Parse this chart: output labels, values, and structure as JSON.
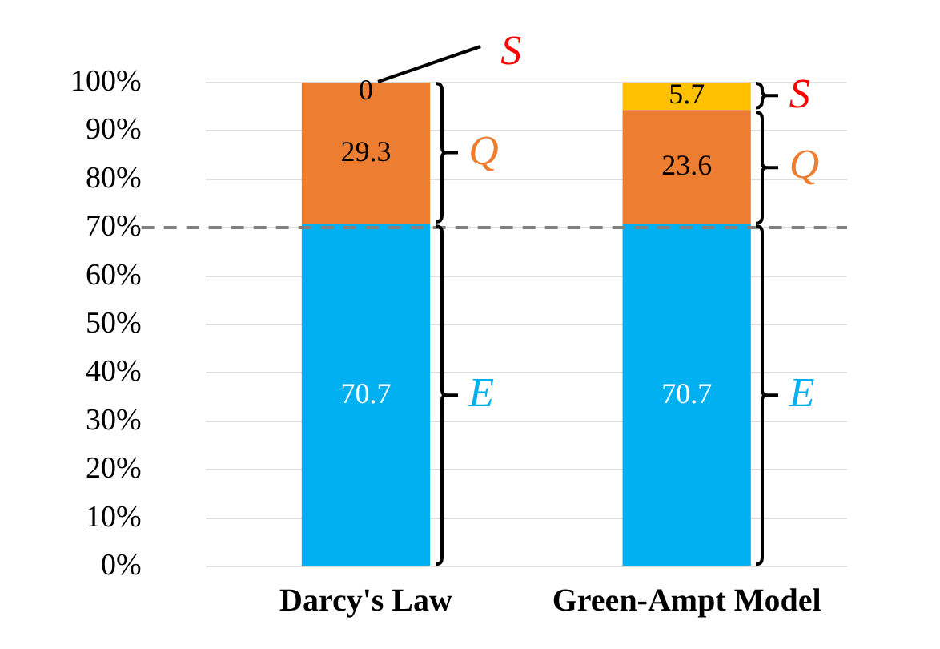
{
  "chart_data": {
    "type": "bar",
    "stacked": true,
    "categories": [
      "Darcy's Law",
      "Green-Ampt Model"
    ],
    "series": [
      {
        "name": "E",
        "color": "#00b0f0",
        "values": [
          70.7,
          70.7
        ]
      },
      {
        "name": "Q",
        "color": "#ed7d31",
        "values": [
          29.3,
          23.6
        ]
      },
      {
        "name": "S",
        "color": "#ffc000",
        "values": [
          0,
          5.7
        ]
      }
    ],
    "ylim": [
      0,
      100
    ],
    "yticks": [
      {
        "value": 0,
        "label": "0%"
      },
      {
        "value": 10,
        "label": "10%"
      },
      {
        "value": 20,
        "label": "20%"
      },
      {
        "value": 30,
        "label": "30%"
      },
      {
        "value": 40,
        "label": "40%"
      },
      {
        "value": 50,
        "label": "50%"
      },
      {
        "value": 60,
        "label": "60%"
      },
      {
        "value": 70,
        "label": "70%"
      },
      {
        "value": 80,
        "label": "80%"
      },
      {
        "value": 90,
        "label": "90%"
      },
      {
        "value": 100,
        "label": "100%"
      }
    ],
    "grid": "y",
    "legend": false,
    "data_labels": true,
    "ref_lines": [
      {
        "axis": "y",
        "value": 70,
        "color": "#808080",
        "line_style": "dashed"
      }
    ]
  }
}
